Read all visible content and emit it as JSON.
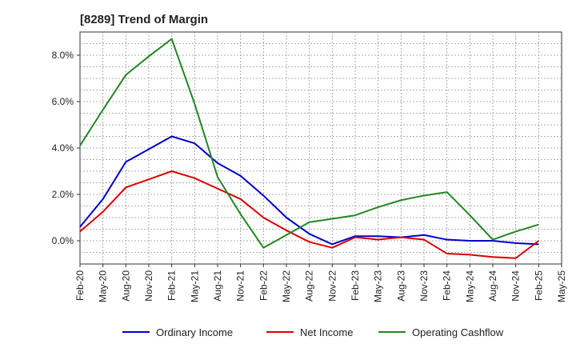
{
  "title": "[8289]  Trend of Margin",
  "chart_data": {
    "type": "line",
    "title": "[8289]  Trend of Margin",
    "xlabel": "",
    "ylabel": "",
    "x": [
      "Feb-20",
      "May-20",
      "Aug-20",
      "Nov-20",
      "Feb-21",
      "May-21",
      "Aug-21",
      "Nov-21",
      "Feb-22",
      "May-22",
      "Aug-22",
      "Nov-22",
      "Feb-23",
      "May-23",
      "Aug-23",
      "Nov-23",
      "Feb-24",
      "May-24",
      "Aug-24",
      "Nov-24",
      "Feb-25",
      "May-25"
    ],
    "y_ticks": [
      "0.0%",
      "2.0%",
      "4.0%",
      "6.0%",
      "8.0%"
    ],
    "ylim": [
      -1.0,
      9.0
    ],
    "y_unit": "%",
    "grid": true,
    "legend_position": "bottom",
    "series": [
      {
        "name": "Ordinary Income",
        "color": "#0000cc",
        "values": [
          0.6,
          1.8,
          3.4,
          3.95,
          4.5,
          4.2,
          3.35,
          2.8,
          1.95,
          1.0,
          0.3,
          -0.15,
          0.2,
          0.2,
          0.15,
          0.25,
          0.05,
          0.0,
          0.0,
          -0.1,
          -0.15,
          null
        ]
      },
      {
        "name": "Net Income",
        "color": "#dd0000",
        "values": [
          0.4,
          1.25,
          2.3,
          2.65,
          3.0,
          2.7,
          2.25,
          1.8,
          1.0,
          0.45,
          -0.05,
          -0.3,
          0.15,
          0.05,
          0.15,
          0.05,
          -0.55,
          -0.6,
          -0.7,
          -0.75,
          0.0,
          null
        ]
      },
      {
        "name": "Operating Cashflow",
        "color": "#228822",
        "values": [
          4.1,
          5.65,
          7.15,
          7.95,
          8.7,
          5.9,
          2.75,
          1.15,
          -0.3,
          0.25,
          0.8,
          0.95,
          1.1,
          1.45,
          1.75,
          1.95,
          2.1,
          1.1,
          0.05,
          0.4,
          0.7,
          null
        ]
      }
    ]
  }
}
